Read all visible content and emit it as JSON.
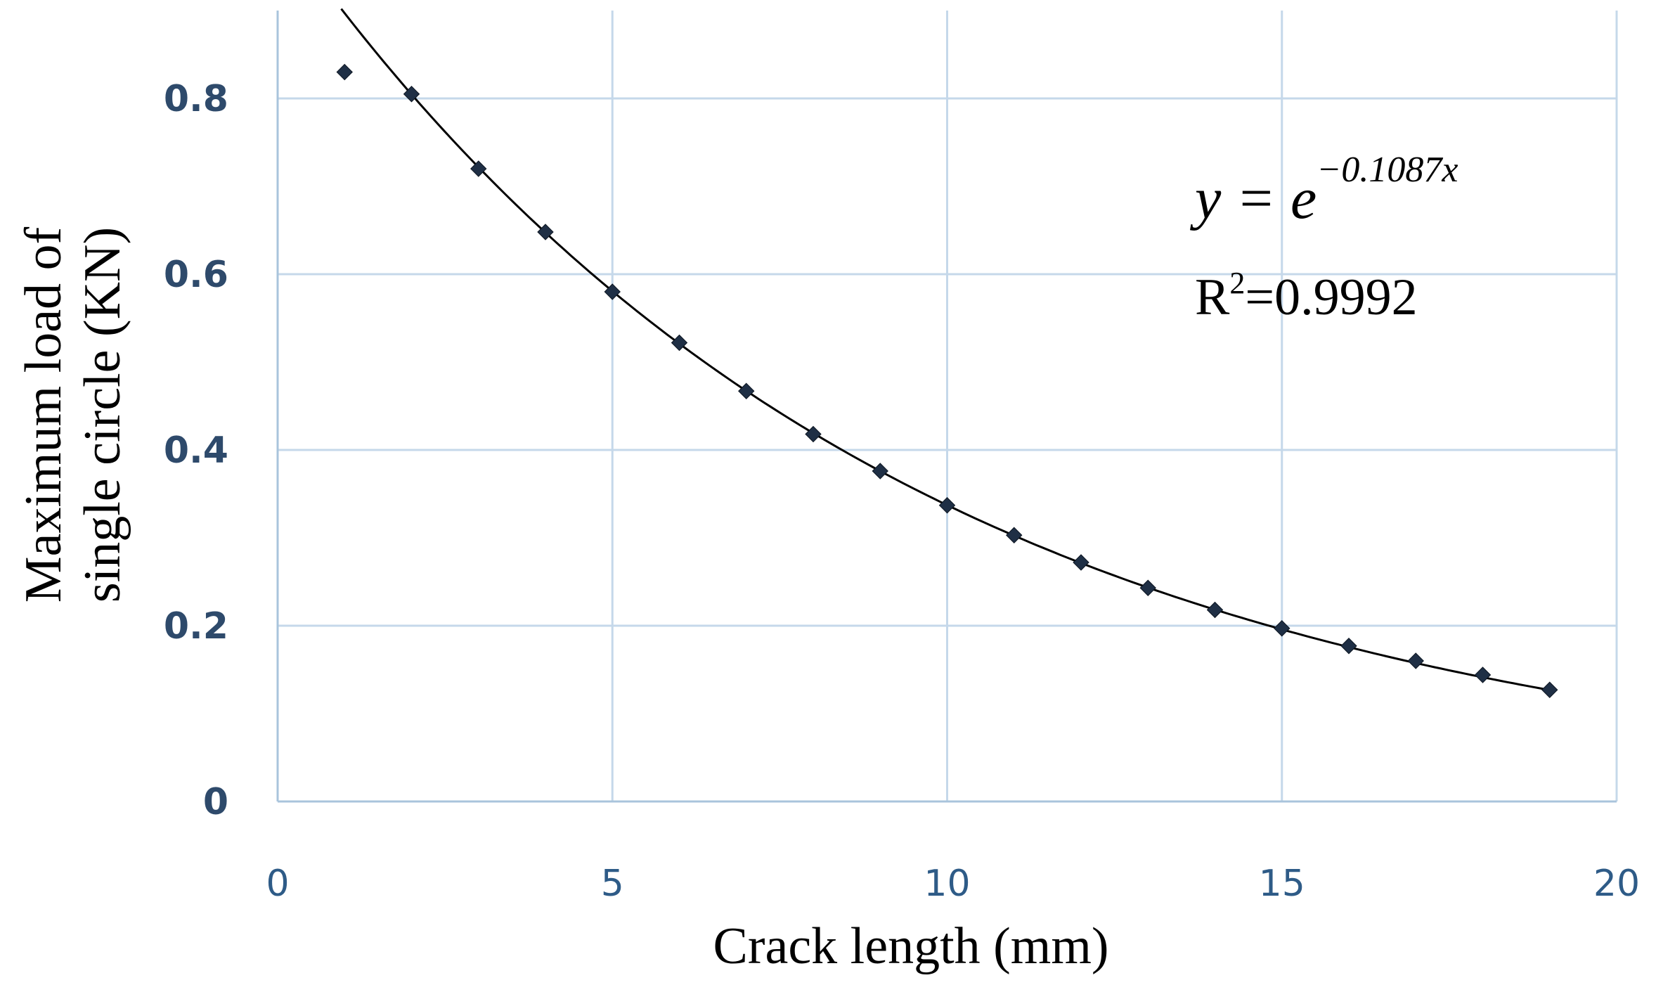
{
  "chart_data": {
    "type": "scatter",
    "xlabel": "Crack length (mm)",
    "ylabel_lines": [
      "Maximum load of",
      "single circle (KN)"
    ],
    "xlim": [
      0,
      20
    ],
    "ylim": [
      0,
      0.8
    ],
    "x_ticks": [
      0,
      5,
      10,
      15,
      20
    ],
    "y_ticks": [
      0,
      0.2,
      0.4,
      0.6,
      0.8
    ],
    "x_tick_labels": [
      "0",
      "5",
      "10",
      "15",
      "20"
    ],
    "y_tick_labels": [
      "0",
      "0.2",
      "0.4",
      "0.6",
      "0.8"
    ],
    "grid": true,
    "series": [
      {
        "marker": "diamond",
        "color": "#1f2f45",
        "x": [
          1,
          2,
          3,
          4,
          5,
          6,
          7,
          8,
          9,
          10,
          11,
          12,
          13,
          14,
          15,
          16,
          17,
          18,
          19
        ],
        "y": [
          0.83,
          0.805,
          0.72,
          0.648,
          0.58,
          0.522,
          0.467,
          0.418,
          0.376,
          0.337,
          0.303,
          0.272,
          0.243,
          0.218,
          0.197,
          0.177,
          0.16,
          0.144,
          0.127
        ]
      }
    ],
    "trendline": {
      "type": "exponential",
      "coefficient": -0.1087,
      "x_range": [
        1,
        19
      ],
      "color": "#000000"
    },
    "annotations": {
      "equation_lhs": "y = e",
      "equation_exponent": "−0.1087x",
      "r2_label": "R",
      "r2_sup": "2",
      "r2_value": "=0.9992"
    },
    "colors": {
      "grid": "#c5d8ea",
      "axis": "#a9c4dc",
      "y_tick": "#2e4a6b",
      "x_tick": "#2e5b87"
    }
  }
}
